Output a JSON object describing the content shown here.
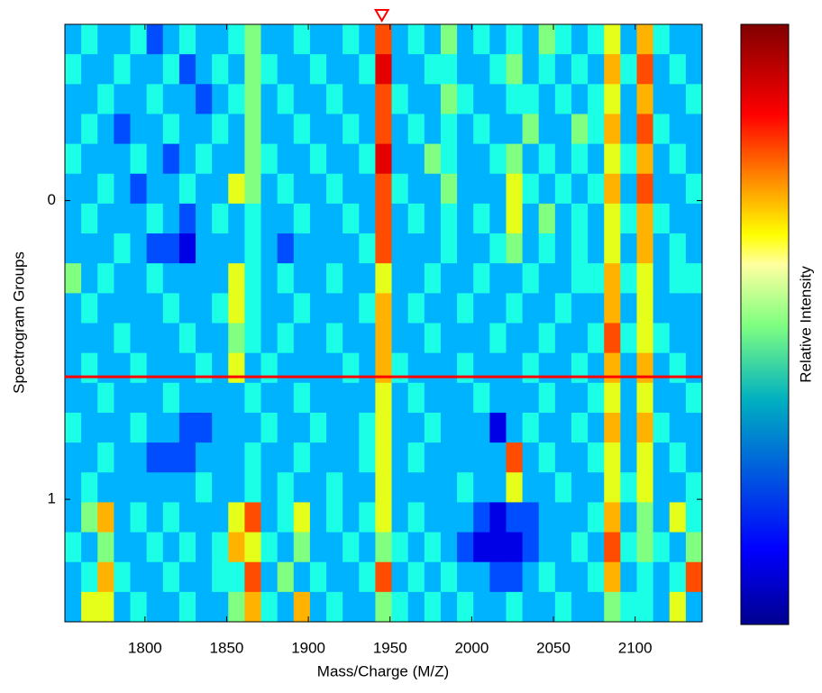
{
  "chart_data": {
    "type": "heatmap",
    "xlabel": "Mass/Charge (M/Z)",
    "ylabel": "Spectrogram Groups",
    "colorbar_label": "Relative Intensity",
    "colormap": "jet",
    "zlim": [
      0,
      10
    ],
    "y_reversed": true,
    "xlim": [
      1751,
      2141
    ],
    "xticks": [
      1800,
      1850,
      1900,
      1950,
      2000,
      2050,
      2100
    ],
    "ylim": [
      -0.59,
      1.41
    ],
    "yticks": [
      0,
      1
    ],
    "x": [
      1756,
      1766,
      1776,
      1786,
      1796,
      1806,
      1816,
      1826,
      1836,
      1846,
      1856,
      1866,
      1876,
      1886,
      1896,
      1906,
      1916,
      1926,
      1936,
      1946,
      1956,
      1966,
      1976,
      1986,
      1996,
      2006,
      2016,
      2026,
      2036,
      2046,
      2056,
      2066,
      2076,
      2086,
      2096,
      2106,
      2116,
      2126,
      2136
    ],
    "y": [
      -0.54,
      -0.44,
      -0.34,
      -0.24,
      -0.14,
      -0.04,
      0.06,
      0.16,
      0.26,
      0.36,
      0.46,
      0.56,
      0.66,
      0.76,
      0.86,
      0.96,
      1.06,
      1.16,
      1.26,
      1.36
    ],
    "z": [
      [
        3,
        4,
        3,
        3,
        4,
        2,
        3,
        4,
        3,
        3,
        4,
        5,
        3,
        3,
        4,
        3,
        3,
        4,
        3,
        8,
        3,
        4,
        3,
        5,
        3,
        4,
        3,
        4,
        3,
        5,
        4,
        3,
        4,
        6,
        3,
        7,
        4,
        3,
        3
      ],
      [
        4,
        3,
        3,
        4,
        3,
        3,
        4,
        2,
        3,
        4,
        3,
        5,
        4,
        3,
        3,
        4,
        3,
        3,
        4,
        9,
        3,
        3,
        4,
        4,
        3,
        3,
        4,
        5,
        3,
        4,
        3,
        4,
        3,
        7,
        4,
        8,
        3,
        4,
        3
      ],
      [
        3,
        3,
        4,
        3,
        3,
        4,
        3,
        3,
        2,
        3,
        4,
        5,
        3,
        4,
        3,
        3,
        4,
        3,
        3,
        8,
        4,
        3,
        3,
        5,
        4,
        3,
        3,
        4,
        4,
        3,
        4,
        3,
        4,
        6,
        3,
        7,
        3,
        3,
        4
      ],
      [
        3,
        4,
        3,
        2,
        3,
        3,
        4,
        3,
        3,
        4,
        3,
        5,
        3,
        3,
        4,
        3,
        3,
        4,
        3,
        8,
        3,
        4,
        3,
        4,
        3,
        4,
        3,
        3,
        5,
        3,
        3,
        5,
        4,
        7,
        3,
        8,
        4,
        3,
        3
      ],
      [
        4,
        3,
        3,
        3,
        4,
        3,
        2,
        3,
        4,
        3,
        3,
        5,
        4,
        3,
        3,
        4,
        3,
        3,
        4,
        9,
        3,
        3,
        5,
        4,
        3,
        3,
        4,
        5,
        3,
        4,
        3,
        4,
        3,
        6,
        4,
        7,
        3,
        4,
        3
      ],
      [
        3,
        3,
        4,
        3,
        2,
        3,
        3,
        4,
        3,
        3,
        6,
        5,
        3,
        4,
        3,
        3,
        4,
        3,
        3,
        8,
        4,
        3,
        3,
        5,
        3,
        3,
        3,
        6,
        4,
        3,
        4,
        3,
        4,
        7,
        3,
        8,
        3,
        3,
        4
      ],
      [
        3,
        4,
        3,
        3,
        3,
        4,
        3,
        2,
        3,
        4,
        3,
        4,
        3,
        3,
        4,
        3,
        3,
        4,
        3,
        8,
        3,
        4,
        3,
        4,
        3,
        4,
        3,
        6,
        3,
        5,
        3,
        4,
        3,
        6,
        4,
        7,
        4,
        3,
        3
      ],
      [
        3,
        3,
        3,
        4,
        3,
        2,
        2,
        1,
        3,
        3,
        3,
        4,
        3,
        2,
        3,
        3,
        3,
        3,
        4,
        8,
        3,
        3,
        3,
        4,
        3,
        3,
        4,
        5,
        3,
        4,
        3,
        4,
        3,
        6,
        3,
        7,
        3,
        4,
        3
      ],
      [
        5,
        3,
        4,
        3,
        3,
        4,
        3,
        3,
        3,
        3,
        6,
        4,
        3,
        4,
        3,
        3,
        4,
        3,
        3,
        6,
        3,
        3,
        4,
        3,
        3,
        4,
        3,
        3,
        4,
        3,
        3,
        4,
        4,
        7,
        4,
        6,
        3,
        4,
        4
      ],
      [
        3,
        4,
        3,
        3,
        3,
        3,
        4,
        3,
        3,
        4,
        6,
        4,
        3,
        3,
        4,
        3,
        3,
        3,
        4,
        7,
        3,
        4,
        3,
        3,
        4,
        3,
        3,
        4,
        3,
        3,
        4,
        3,
        3,
        7,
        3,
        6,
        3,
        3,
        3
      ],
      [
        3,
        3,
        3,
        4,
        3,
        3,
        3,
        4,
        3,
        3,
        5,
        4,
        3,
        4,
        3,
        3,
        4,
        3,
        3,
        7,
        3,
        3,
        4,
        3,
        3,
        3,
        4,
        3,
        3,
        4,
        3,
        3,
        4,
        8,
        4,
        6,
        4,
        3,
        3
      ],
      [
        3,
        4,
        3,
        3,
        4,
        3,
        3,
        3,
        4,
        3,
        6,
        3,
        4,
        3,
        3,
        3,
        3,
        4,
        3,
        7,
        4,
        3,
        3,
        3,
        4,
        3,
        3,
        3,
        4,
        3,
        3,
        4,
        3,
        7,
        3,
        7,
        3,
        4,
        3
      ],
      [
        3,
        3,
        4,
        3,
        3,
        3,
        4,
        3,
        3,
        3,
        3,
        4,
        3,
        3,
        4,
        3,
        3,
        3,
        3,
        6,
        3,
        4,
        3,
        3,
        3,
        4,
        3,
        3,
        3,
        4,
        3,
        3,
        4,
        6,
        3,
        6,
        3,
        3,
        4
      ],
      [
        4,
        3,
        3,
        3,
        4,
        3,
        3,
        2,
        2,
        3,
        3,
        3,
        4,
        3,
        3,
        4,
        3,
        3,
        4,
        6,
        3,
        3,
        4,
        3,
        3,
        3,
        1,
        3,
        4,
        3,
        3,
        4,
        3,
        7,
        3,
        7,
        4,
        3,
        3
      ],
      [
        3,
        3,
        4,
        3,
        3,
        2,
        2,
        2,
        3,
        3,
        3,
        4,
        3,
        3,
        4,
        3,
        3,
        3,
        4,
        6,
        3,
        4,
        3,
        3,
        3,
        3,
        3,
        8,
        3,
        4,
        3,
        3,
        4,
        6,
        3,
        6,
        3,
        4,
        3
      ],
      [
        3,
        4,
        3,
        3,
        3,
        3,
        3,
        3,
        4,
        3,
        3,
        4,
        3,
        4,
        3,
        3,
        4,
        3,
        3,
        6,
        3,
        3,
        3,
        3,
        4,
        3,
        3,
        6,
        3,
        3,
        4,
        3,
        3,
        6,
        4,
        6,
        3,
        3,
        4
      ],
      [
        3,
        5,
        7,
        3,
        4,
        3,
        4,
        3,
        3,
        3,
        6,
        8,
        3,
        4,
        6,
        3,
        4,
        3,
        4,
        6,
        3,
        4,
        3,
        3,
        3,
        2,
        1,
        2,
        2,
        3,
        3,
        3,
        4,
        7,
        3,
        5,
        3,
        6,
        4
      ],
      [
        4,
        3,
        5,
        3,
        3,
        4,
        3,
        4,
        3,
        4,
        7,
        6,
        4,
        3,
        5,
        3,
        3,
        4,
        3,
        5,
        4,
        3,
        4,
        3,
        2,
        1,
        1,
        1,
        2,
        3,
        3,
        4,
        3,
        8,
        4,
        5,
        4,
        3,
        5
      ],
      [
        3,
        4,
        7,
        4,
        3,
        3,
        4,
        3,
        3,
        4,
        4,
        8,
        3,
        5,
        3,
        4,
        3,
        3,
        4,
        8,
        3,
        4,
        3,
        4,
        3,
        3,
        2,
        2,
        3,
        4,
        3,
        3,
        4,
        7,
        3,
        4,
        3,
        4,
        8
      ],
      [
        3,
        6,
        6,
        3,
        4,
        3,
        3,
        4,
        3,
        3,
        5,
        7,
        4,
        3,
        7,
        3,
        4,
        3,
        3,
        5,
        4,
        3,
        4,
        3,
        4,
        3,
        3,
        4,
        3,
        3,
        4,
        3,
        3,
        5,
        4,
        4,
        3,
        6,
        3
      ]
    ],
    "hline": 0.59,
    "hline_color": "#ff0000",
    "marker_x": 1945,
    "marker_color": "#ff0000"
  }
}
